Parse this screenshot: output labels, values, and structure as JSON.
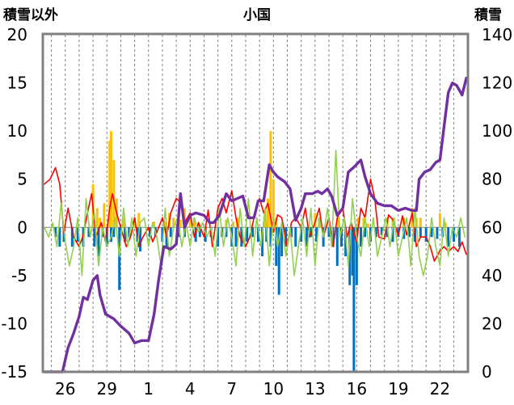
{
  "chart_data": {
    "type": "line",
    "title": "小国",
    "ylabel_left": "積雪以外",
    "ylabel_right": "積雪",
    "y_left": {
      "min": -15,
      "max": 20,
      "ticks": [
        20,
        15,
        10,
        5,
        0,
        -5,
        -10,
        -15
      ]
    },
    "y_right": {
      "min": 0,
      "max": 140,
      "ticks": [
        140,
        120,
        100,
        80,
        60,
        40,
        20,
        0
      ]
    },
    "x_tick_labels": [
      "26",
      "29",
      "1",
      "4",
      "7",
      "10",
      "13",
      "16",
      "19",
      "22"
    ],
    "x_tick_days": [
      2,
      5,
      8,
      11,
      14,
      17,
      20,
      23,
      26,
      29
    ],
    "x_range_days": [
      0.5,
      30.9
    ],
    "grid": {
      "vertical_dashed_daily": true,
      "horizontal_zero": true
    },
    "colors": {
      "frame": "#808080",
      "temperature": "#ff0000",
      "temp_change": "#92d050",
      "snowfall": "#ffc000",
      "precip": "#0070c0",
      "snow_depth": "#7030a0"
    },
    "series_snow_depth_right_axis": [
      [
        0.5,
        0
      ],
      [
        1.1,
        0
      ],
      [
        1.8,
        0
      ],
      [
        2.2,
        10
      ],
      [
        2.6,
        16
      ],
      [
        3.0,
        23
      ],
      [
        3.3,
        31
      ],
      [
        3.6,
        30
      ],
      [
        4.0,
        38
      ],
      [
        4.3,
        40
      ],
      [
        4.5,
        32
      ],
      [
        4.9,
        24
      ],
      [
        5.5,
        22
      ],
      [
        6.0,
        19
      ],
      [
        6.6,
        16
      ],
      [
        7.0,
        12
      ],
      [
        7.5,
        13
      ],
      [
        8.0,
        13
      ],
      [
        8.4,
        24
      ],
      [
        8.7,
        37
      ],
      [
        9.1,
        52
      ],
      [
        9.6,
        51
      ],
      [
        10.0,
        53
      ],
      [
        10.3,
        74
      ],
      [
        10.6,
        60
      ],
      [
        11.0,
        65
      ],
      [
        11.4,
        66
      ],
      [
        12.0,
        65
      ],
      [
        12.4,
        62
      ],
      [
        12.7,
        62
      ],
      [
        13.1,
        65
      ],
      [
        13.6,
        74
      ],
      [
        14.0,
        71
      ],
      [
        14.4,
        72
      ],
      [
        14.8,
        73
      ],
      [
        15.2,
        64
      ],
      [
        15.6,
        64
      ],
      [
        15.9,
        71
      ],
      [
        16.3,
        71
      ],
      [
        16.7,
        86
      ],
      [
        17.0,
        83
      ],
      [
        17.3,
        81
      ],
      [
        17.8,
        79
      ],
      [
        18.2,
        76
      ],
      [
        18.6,
        63
      ],
      [
        19.0,
        68
      ],
      [
        19.3,
        74
      ],
      [
        19.8,
        74
      ],
      [
        20.2,
        75
      ],
      [
        20.5,
        74
      ],
      [
        20.9,
        76
      ],
      [
        21.2,
        73
      ],
      [
        21.6,
        65
      ],
      [
        22.0,
        68
      ],
      [
        22.4,
        83
      ],
      [
        22.8,
        85
      ],
      [
        23.3,
        88
      ],
      [
        23.6,
        81
      ],
      [
        24.0,
        74
      ],
      [
        24.5,
        70
      ],
      [
        25.0,
        69
      ],
      [
        25.5,
        69
      ],
      [
        26.0,
        67
      ],
      [
        26.5,
        68
      ],
      [
        27.0,
        67
      ],
      [
        27.3,
        67
      ],
      [
        27.5,
        80
      ],
      [
        27.9,
        83
      ],
      [
        28.3,
        84
      ],
      [
        28.7,
        87
      ],
      [
        29.0,
        88
      ],
      [
        29.3,
        102
      ],
      [
        29.6,
        116
      ],
      [
        29.9,
        120
      ],
      [
        30.2,
        119
      ],
      [
        30.6,
        115
      ],
      [
        30.9,
        122
      ]
    ],
    "series_temperature_left_axis": [
      [
        0.5,
        4.5
      ],
      [
        0.9,
        5
      ],
      [
        1.3,
        6.2
      ],
      [
        1.6,
        4.5
      ],
      [
        1.9,
        -0.6
      ],
      [
        2.2,
        2
      ],
      [
        2.6,
        -1
      ],
      [
        3.0,
        -2
      ],
      [
        3.3,
        -0.8
      ],
      [
        3.6,
        1.5
      ],
      [
        3.9,
        3.5
      ],
      [
        4.2,
        -1
      ],
      [
        4.6,
        0.5
      ],
      [
        4.9,
        -1.5
      ],
      [
        5.2,
        2
      ],
      [
        5.4,
        3.5
      ],
      [
        5.7,
        1.5
      ],
      [
        6.0,
        0
      ],
      [
        6.4,
        -2
      ],
      [
        6.7,
        -1
      ],
      [
        7.0,
        1
      ],
      [
        7.3,
        -2
      ],
      [
        7.6,
        -1
      ],
      [
        8.0,
        0
      ],
      [
        8.3,
        -1.5
      ],
      [
        8.6,
        -0.5
      ],
      [
        9.0,
        1
      ],
      [
        9.3,
        -1
      ],
      [
        9.6,
        1.5
      ],
      [
        10.0,
        3
      ],
      [
        10.3,
        2.6
      ],
      [
        10.6,
        0.5
      ],
      [
        11.0,
        1.5
      ],
      [
        11.3,
        -1
      ],
      [
        11.6,
        0.5
      ],
      [
        12.0,
        -1
      ],
      [
        12.3,
        1.8
      ],
      [
        12.6,
        -2
      ],
      [
        13.0,
        2
      ],
      [
        13.3,
        3
      ],
      [
        13.6,
        1.5
      ],
      [
        14.0,
        3.8
      ],
      [
        14.3,
        1
      ],
      [
        14.6,
        -1
      ],
      [
        15.0,
        -2
      ],
      [
        15.3,
        -1
      ],
      [
        15.6,
        1
      ],
      [
        16.0,
        3
      ],
      [
        16.3,
        1.5
      ],
      [
        16.6,
        2.5
      ],
      [
        17.0,
        -0.5
      ],
      [
        17.3,
        1.3
      ],
      [
        17.6,
        1
      ],
      [
        18.0,
        -2
      ],
      [
        18.3,
        0.5
      ],
      [
        18.6,
        1
      ],
      [
        19.0,
        0
      ],
      [
        19.3,
        2
      ],
      [
        19.6,
        -1
      ],
      [
        20.0,
        0.5
      ],
      [
        20.3,
        2
      ],
      [
        20.6,
        -1
      ],
      [
        21.0,
        1
      ],
      [
        21.3,
        -2
      ],
      [
        21.6,
        1
      ],
      [
        22.0,
        2
      ],
      [
        22.3,
        -1
      ],
      [
        22.6,
        0.5
      ],
      [
        23.0,
        -1.5
      ],
      [
        23.3,
        2
      ],
      [
        23.6,
        1
      ],
      [
        24.0,
        5
      ],
      [
        24.3,
        3
      ],
      [
        24.6,
        -1
      ],
      [
        25.0,
        -1.2
      ],
      [
        25.3,
        1.3
      ],
      [
        25.6,
        0.8
      ],
      [
        26.0,
        -0.8
      ],
      [
        26.3,
        1.2
      ],
      [
        26.6,
        -0.8
      ],
      [
        27.0,
        1.5
      ],
      [
        27.3,
        -2
      ],
      [
        27.6,
        -1
      ],
      [
        28.0,
        -1
      ],
      [
        28.3,
        -2
      ],
      [
        28.6,
        -3.5
      ],
      [
        29.0,
        -2.4
      ],
      [
        29.3,
        -2
      ],
      [
        29.6,
        -2.5
      ],
      [
        30.0,
        -2
      ],
      [
        30.3,
        -2.5
      ],
      [
        30.6,
        -1.5
      ],
      [
        30.9,
        -2.8
      ]
    ],
    "series_temp_change_left_axis": [
      [
        0.5,
        0
      ],
      [
        0.8,
        -1
      ],
      [
        1.1,
        0.5
      ],
      [
        1.4,
        -2
      ],
      [
        1.7,
        2.5
      ],
      [
        2.0,
        -1.5
      ],
      [
        2.3,
        -4
      ],
      [
        2.6,
        -2
      ],
      [
        2.9,
        1
      ],
      [
        3.2,
        -5
      ],
      [
        3.5,
        3
      ],
      [
        3.8,
        -1
      ],
      [
        4.1,
        1.5
      ],
      [
        4.4,
        -4
      ],
      [
        4.7,
        0
      ],
      [
        5.0,
        -2
      ],
      [
        5.3,
        -1
      ],
      [
        5.6,
        1
      ],
      [
        5.9,
        -3
      ],
      [
        6.2,
        2
      ],
      [
        6.5,
        -2
      ],
      [
        6.8,
        1
      ],
      [
        7.1,
        -3
      ],
      [
        7.4,
        0.5
      ],
      [
        7.7,
        1
      ],
      [
        8.0,
        -2
      ],
      [
        8.3,
        0.5
      ],
      [
        8.6,
        -1
      ],
      [
        8.9,
        -4
      ],
      [
        9.2,
        2
      ],
      [
        9.5,
        -3
      ],
      [
        9.8,
        0
      ],
      [
        10.1,
        1
      ],
      [
        10.4,
        -2
      ],
      [
        10.7,
        0.5
      ],
      [
        11.0,
        -2
      ],
      [
        11.3,
        1
      ],
      [
        11.6,
        -0.5
      ],
      [
        11.9,
        0.5
      ],
      [
        12.2,
        -1
      ],
      [
        12.5,
        0
      ],
      [
        12.8,
        -3
      ],
      [
        13.1,
        2
      ],
      [
        13.4,
        -2
      ],
      [
        13.7,
        1
      ],
      [
        14.0,
        -1
      ],
      [
        14.3,
        -4
      ],
      [
        14.6,
        2
      ],
      [
        14.9,
        -2
      ],
      [
        15.2,
        3
      ],
      [
        15.5,
        -3
      ],
      [
        15.8,
        1
      ],
      [
        16.1,
        -2
      ],
      [
        16.4,
        2
      ],
      [
        16.7,
        -4
      ],
      [
        17.0,
        1
      ],
      [
        17.3,
        -2
      ],
      [
        17.6,
        0.5
      ],
      [
        17.9,
        -3
      ],
      [
        18.2,
        0
      ],
      [
        18.5,
        -5
      ],
      [
        18.8,
        -2
      ],
      [
        19.1,
        1
      ],
      [
        19.4,
        -3
      ],
      [
        19.7,
        2
      ],
      [
        20.0,
        -4
      ],
      [
        20.3,
        1
      ],
      [
        20.6,
        -1
      ],
      [
        20.9,
        2
      ],
      [
        21.2,
        -2
      ],
      [
        21.5,
        8
      ],
      [
        21.8,
        -1
      ],
      [
        22.1,
        1
      ],
      [
        22.4,
        -4
      ],
      [
        22.7,
        3
      ],
      [
        23.0,
        -1
      ],
      [
        23.3,
        -3
      ],
      [
        23.6,
        1
      ],
      [
        23.9,
        -2
      ],
      [
        24.2,
        1
      ],
      [
        24.5,
        -3
      ],
      [
        24.8,
        -1
      ],
      [
        25.1,
        1
      ],
      [
        25.4,
        -2
      ],
      [
        25.7,
        1
      ],
      [
        26.0,
        -3
      ],
      [
        26.3,
        -1
      ],
      [
        26.6,
        1
      ],
      [
        26.9,
        -4
      ],
      [
        27.2,
        2
      ],
      [
        27.5,
        -3
      ],
      [
        27.8,
        -5
      ],
      [
        28.1,
        -3
      ],
      [
        28.4,
        1
      ],
      [
        28.7,
        -2
      ],
      [
        29.0,
        -4
      ],
      [
        29.3,
        1
      ],
      [
        29.6,
        -3
      ],
      [
        29.9,
        0
      ],
      [
        30.2,
        -1
      ],
      [
        30.5,
        1
      ],
      [
        30.8,
        -1
      ]
    ],
    "bars_snowfall_left_axis": [
      [
        4.0,
        4.5
      ],
      [
        4.3,
        2
      ],
      [
        4.5,
        1
      ],
      [
        4.8,
        2.5
      ],
      [
        5.2,
        9
      ],
      [
        5.3,
        10
      ],
      [
        5.5,
        7
      ],
      [
        5.7,
        3
      ],
      [
        6.2,
        1
      ],
      [
        7.0,
        1
      ],
      [
        7.3,
        1.5
      ],
      [
        8.4,
        0.6
      ],
      [
        9.2,
        0.6
      ],
      [
        9.5,
        1.5
      ],
      [
        9.8,
        1
      ],
      [
        10.3,
        0.8
      ],
      [
        10.6,
        2
      ],
      [
        11.0,
        1
      ],
      [
        11.3,
        1
      ],
      [
        11.6,
        0.5
      ],
      [
        13.6,
        0.8
      ],
      [
        14.1,
        0.6
      ],
      [
        14.4,
        1
      ],
      [
        16.4,
        1.8
      ],
      [
        16.6,
        3
      ],
      [
        16.8,
        10
      ],
      [
        17.0,
        5
      ],
      [
        17.2,
        1
      ],
      [
        20.0,
        1.5
      ],
      [
        20.3,
        1
      ],
      [
        21.7,
        1
      ],
      [
        23.1,
        1
      ],
      [
        23.5,
        1
      ],
      [
        23.8,
        0.4
      ],
      [
        25.2,
        1
      ],
      [
        25.6,
        1
      ],
      [
        26.4,
        1
      ],
      [
        27.0,
        2
      ],
      [
        27.3,
        1
      ],
      [
        27.6,
        1
      ],
      [
        29.0,
        1.5
      ],
      [
        29.4,
        0.5
      ]
    ],
    "bars_precip_left_axis": [
      [
        1.3,
        -1
      ],
      [
        1.6,
        -2
      ],
      [
        1.9,
        -1.5
      ],
      [
        2.5,
        -2
      ],
      [
        2.9,
        -1.5
      ],
      [
        3.3,
        -2
      ],
      [
        3.7,
        -1
      ],
      [
        4.1,
        -2
      ],
      [
        4.4,
        -3
      ],
      [
        4.7,
        -1
      ],
      [
        5.0,
        -2
      ],
      [
        5.3,
        -1.5
      ],
      [
        5.5,
        -1
      ],
      [
        5.9,
        -6.5
      ],
      [
        6.3,
        -1.5
      ],
      [
        6.6,
        -1
      ],
      [
        7.2,
        -1.5
      ],
      [
        7.4,
        -2.5
      ],
      [
        8.1,
        -1
      ],
      [
        8.5,
        -1
      ],
      [
        9.0,
        -1.5
      ],
      [
        9.3,
        -2
      ],
      [
        9.6,
        -1
      ],
      [
        10.2,
        -1
      ],
      [
        10.6,
        -1
      ],
      [
        11.4,
        -1.5
      ],
      [
        11.7,
        -1
      ],
      [
        12.1,
        -1.5
      ],
      [
        12.5,
        -1
      ],
      [
        13.0,
        -2
      ],
      [
        13.3,
        -1
      ],
      [
        13.6,
        -1
      ],
      [
        14.0,
        -2
      ],
      [
        14.3,
        -2
      ],
      [
        14.7,
        -2
      ],
      [
        15.1,
        -1.5
      ],
      [
        15.5,
        -1
      ],
      [
        15.9,
        -1.5
      ],
      [
        16.2,
        -3
      ],
      [
        16.5,
        -1.5
      ],
      [
        16.8,
        -2
      ],
      [
        17.2,
        -4
      ],
      [
        17.4,
        -7
      ],
      [
        17.6,
        -3
      ],
      [
        17.9,
        -2
      ],
      [
        18.3,
        -1
      ],
      [
        18.6,
        -2
      ],
      [
        19.0,
        -1.5
      ],
      [
        19.4,
        -2
      ],
      [
        19.7,
        -1
      ],
      [
        20.1,
        -1.5
      ],
      [
        20.6,
        -2
      ],
      [
        21.0,
        -1
      ],
      [
        21.3,
        -2
      ],
      [
        21.6,
        -4
      ],
      [
        21.9,
        -2
      ],
      [
        22.2,
        -3
      ],
      [
        22.5,
        -6
      ],
      [
        22.7,
        -5
      ],
      [
        22.8,
        -15
      ],
      [
        23.0,
        -6
      ],
      [
        23.3,
        -2
      ],
      [
        23.6,
        -1
      ],
      [
        24.0,
        -1.5
      ],
      [
        24.4,
        -1
      ],
      [
        24.8,
        -0.8
      ],
      [
        25.2,
        -1
      ],
      [
        25.6,
        -1.5
      ],
      [
        26.0,
        -1
      ],
      [
        26.4,
        -1.2
      ],
      [
        26.8,
        -1
      ],
      [
        27.2,
        -1.5
      ],
      [
        27.6,
        -1
      ],
      [
        28.0,
        -1.5
      ],
      [
        28.4,
        -1
      ],
      [
        28.8,
        -1.2
      ],
      [
        29.2,
        -1
      ],
      [
        29.6,
        -2
      ],
      [
        30.0,
        -1.5
      ],
      [
        30.4,
        -2
      ]
    ]
  }
}
